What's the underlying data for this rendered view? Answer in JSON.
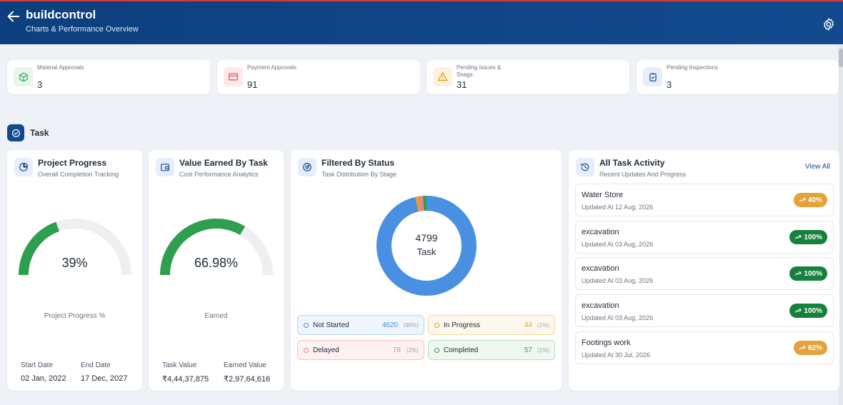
{
  "header": {
    "title": "buildcontrol",
    "subtitle": "Charts & Performance Overview"
  },
  "stats": [
    {
      "label": "Material Approvals",
      "value": "3",
      "icon": "cube-icon",
      "color": "#34a853",
      "bg": "#e7f5ea"
    },
    {
      "label": "Payment Approvals",
      "value": "91",
      "icon": "credit-card-icon",
      "color": "#e05260",
      "bg": "#fde8ea"
    },
    {
      "label": "Pending Issues & Snags",
      "value": "31",
      "icon": "warning-icon",
      "color": "#e0a020",
      "bg": "#fdf2de"
    },
    {
      "label": "Pending Inspections",
      "value": "3",
      "icon": "clipboard-check-icon",
      "color": "#134a8f",
      "bg": "#e6eef9"
    }
  ],
  "section": {
    "title": "Task"
  },
  "project_progress": {
    "title": "Project Progress",
    "subtitle": "Overall Completion Tracking",
    "value_text": "39%",
    "fraction": 0.39,
    "caption": "Project Progress %",
    "start_label": "Start Date",
    "start_value": "02 Jan, 2022",
    "end_label": "End Date",
    "end_value": "17 Dec, 2027"
  },
  "value_earned": {
    "title": "Value Earned By Task",
    "subtitle": "Cost Performance Analytics",
    "value_text": "66.98%",
    "fraction": 0.6698,
    "caption": "Earned",
    "task_value_label": "Task Value",
    "task_value": "₹4,44,37,875",
    "earned_value_label": "Earned Value",
    "earned_value": "₹2,97,64,616"
  },
  "status": {
    "title": "Filtered By Status",
    "subtitle": "Task Distribution By Stage",
    "total": "4799",
    "total_label": "Task",
    "items": [
      {
        "name": "Not Started",
        "count": "4620",
        "pct": "(96%)",
        "value": 4620,
        "color": "#4a90e2",
        "bg": "#eef5fd",
        "border": "#b9d4f3"
      },
      {
        "name": "In Progress",
        "count": "44",
        "pct": "(1%)",
        "value": 44,
        "color": "#e0a020",
        "bg": "#fef8ec",
        "border": "#f3d9a4"
      },
      {
        "name": "Delayed",
        "count": "78",
        "pct": "(2%)",
        "value": 78,
        "color": "#e88585",
        "bg": "#fdf1f1",
        "border": "#f2c4c4"
      },
      {
        "name": "Completed",
        "count": "57",
        "pct": "(1%)",
        "value": 57,
        "color": "#2e9e4f",
        "bg": "#eef8f0",
        "border": "#b6dfc1"
      }
    ]
  },
  "activity": {
    "title": "All Task Activity",
    "subtitle": "Recent Updates And Progress",
    "view_all": "View All",
    "items": [
      {
        "name": "Water Store",
        "date": "Updated At 12 Aug, 2026",
        "badge": "40%",
        "color": "#e3a23a"
      },
      {
        "name": "excavation",
        "date": "Updated At 03 Aug, 2026",
        "badge": "100%",
        "color": "#16813d"
      },
      {
        "name": "excavation",
        "date": "Updated At 03 Aug, 2026",
        "badge": "100%",
        "color": "#16813d"
      },
      {
        "name": "excavation",
        "date": "Updated At 03 Aug, 2026",
        "badge": "100%",
        "color": "#16813d"
      },
      {
        "name": "Footings work",
        "date": "Updated At 30 Jul, 2026",
        "badge": "82%",
        "color": "#e3a23a"
      }
    ]
  }
}
